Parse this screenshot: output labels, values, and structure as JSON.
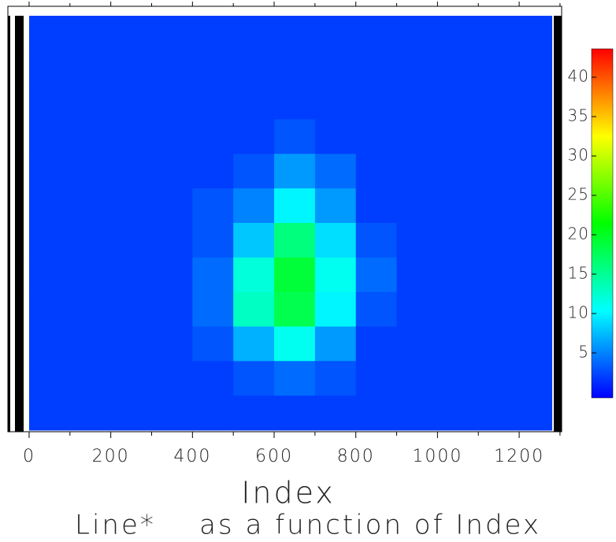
{
  "chart_data": {
    "type": "heatmap",
    "xlabel": "Index",
    "title": "Line*    as a function of Index",
    "xbins": [
      0,
      100,
      200,
      300,
      400,
      500,
      600,
      700,
      800,
      900,
      1000,
      1100,
      1200,
      1280
    ],
    "values": [
      [
        2,
        2,
        2,
        2,
        2,
        2,
        2,
        2,
        2,
        2,
        2,
        2,
        2
      ],
      [
        2,
        2,
        2,
        2,
        2,
        2,
        2,
        2,
        2,
        2,
        2,
        2,
        2
      ],
      [
        2,
        2,
        2,
        2,
        2,
        2,
        2,
        2,
        2,
        2,
        2,
        2,
        2
      ],
      [
        2,
        2,
        2,
        2,
        2,
        2,
        3,
        2,
        2,
        2,
        2,
        2,
        2
      ],
      [
        2,
        2,
        2,
        2,
        2,
        3,
        6,
        4,
        2,
        2,
        2,
        2,
        2
      ],
      [
        2,
        2,
        2,
        2,
        3,
        5,
        10,
        6,
        2,
        2,
        2,
        2,
        2
      ],
      [
        2,
        2,
        2,
        2,
        3,
        8,
        16,
        9,
        3,
        2,
        2,
        2,
        2
      ],
      [
        2,
        2,
        2,
        2,
        4,
        12,
        19,
        11,
        4,
        2,
        2,
        2,
        2
      ],
      [
        2,
        2,
        2,
        2,
        4,
        13,
        18,
        10,
        3,
        2,
        2,
        2,
        2
      ],
      [
        2,
        2,
        2,
        2,
        3,
        7,
        11,
        6,
        2,
        2,
        2,
        2,
        2
      ],
      [
        2,
        2,
        2,
        2,
        2,
        3,
        4,
        3,
        2,
        2,
        2,
        2,
        2
      ],
      [
        2,
        2,
        2,
        2,
        2,
        2,
        2,
        2,
        2,
        2,
        2,
        2,
        2
      ]
    ],
    "xlim": [
      -52,
      1304
    ],
    "xticks": [
      0,
      200,
      400,
      600,
      800,
      1000,
      1200
    ],
    "xminorticks": [
      100,
      300,
      500,
      700,
      900,
      1100,
      1300
    ],
    "clim": [
      -0.7,
      43.6
    ],
    "cticks": [
      5,
      10,
      15,
      20,
      25,
      30,
      35,
      40
    ],
    "colorscale": [
      "#0000ff",
      "#00ffff",
      "#00ff00",
      "#ffff00",
      "#ff0000"
    ]
  }
}
